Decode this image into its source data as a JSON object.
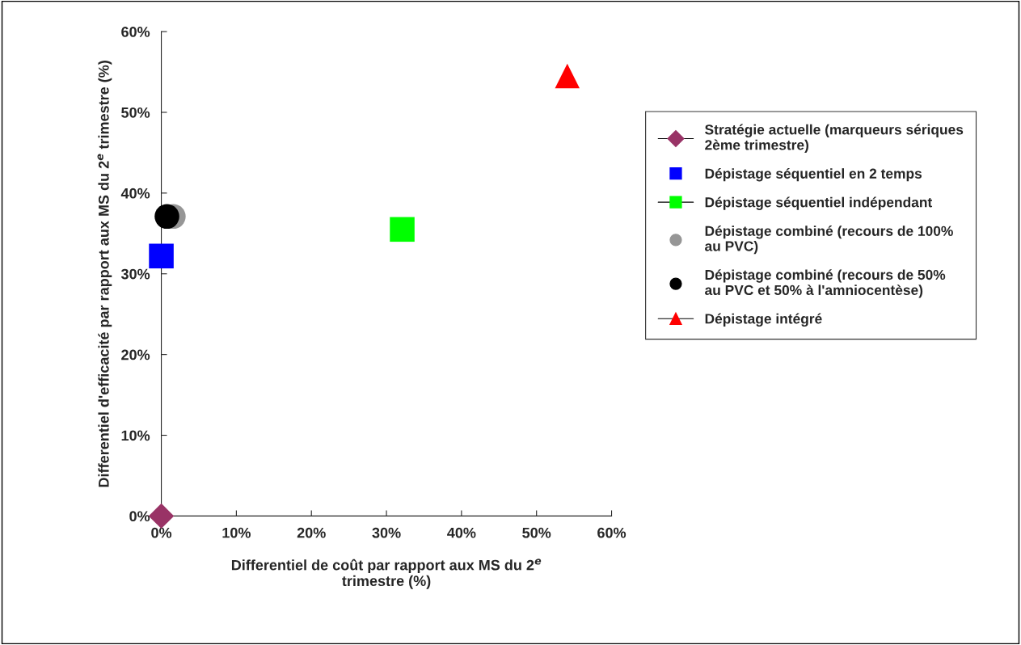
{
  "chart_data": {
    "type": "scatter",
    "xlabel": "Differentiel de coût par rapport aux MS du 2$^{e}$\ntrimestre (%)",
    "ylabel": "Differentiel d'efficacité par rapport aux MS du 2$^{e}$ trimestre (%)",
    "xlim": [
      0,
      0.6
    ],
    "ylim": [
      0,
      0.6
    ],
    "xticks": [
      {
        "value": 0,
        "label": "0%"
      },
      {
        "value": 0.1,
        "label": "10%"
      },
      {
        "value": 0.2,
        "label": "20%"
      },
      {
        "value": 0.3,
        "label": "30%"
      },
      {
        "value": 0.4,
        "label": "40%"
      },
      {
        "value": 0.5,
        "label": "50%"
      },
      {
        "value": 0.6,
        "label": "60%"
      }
    ],
    "yticks": [
      {
        "value": 0,
        "label": "0%"
      },
      {
        "value": 0.1,
        "label": "10%"
      },
      {
        "value": 0.2,
        "label": "20%"
      },
      {
        "value": 0.3,
        "label": "30%"
      },
      {
        "value": 0.4,
        "label": "40%"
      },
      {
        "value": 0.5,
        "label": "50%"
      },
      {
        "value": 0.6,
        "label": "60%"
      }
    ],
    "grid": false,
    "legend": "right",
    "series": [
      {
        "name": "Stratégie actuelle (marqueurs sériques\n2ème trimestre)",
        "color": "#993366",
        "marker": "diamond",
        "line_style": "solid",
        "x": [
          0
        ],
        "values": [
          0
        ]
      },
      {
        "name": "Dépistage séquentiel en 2 temps",
        "color": "#0000ff",
        "marker": "square",
        "x": [
          0
        ],
        "values": [
          0.322
        ]
      },
      {
        "name": "Dépistage séquentiel indépendant",
        "color": "#00ff00",
        "marker": "square",
        "line_style": "solid",
        "x": [
          0.321
        ],
        "values": [
          0.355
        ]
      },
      {
        "name": "Dépistage combiné (recours de 100%\nau PVC)",
        "color": "#969696",
        "marker": "circle",
        "x": [
          0.016
        ],
        "values": [
          0.371
        ]
      },
      {
        "name": "Dépistage combiné (recours de 50%\nau PVC et 50% à l'amniocentèse)",
        "color": "#000000",
        "marker": "circle",
        "x": [
          0.0075
        ],
        "values": [
          0.371
        ]
      },
      {
        "name": "Dépistage intégré",
        "color": "#ff0000",
        "marker": "triangle",
        "line_style": "solid",
        "x": [
          0.541
        ],
        "values": [
          0.545
        ]
      }
    ]
  }
}
